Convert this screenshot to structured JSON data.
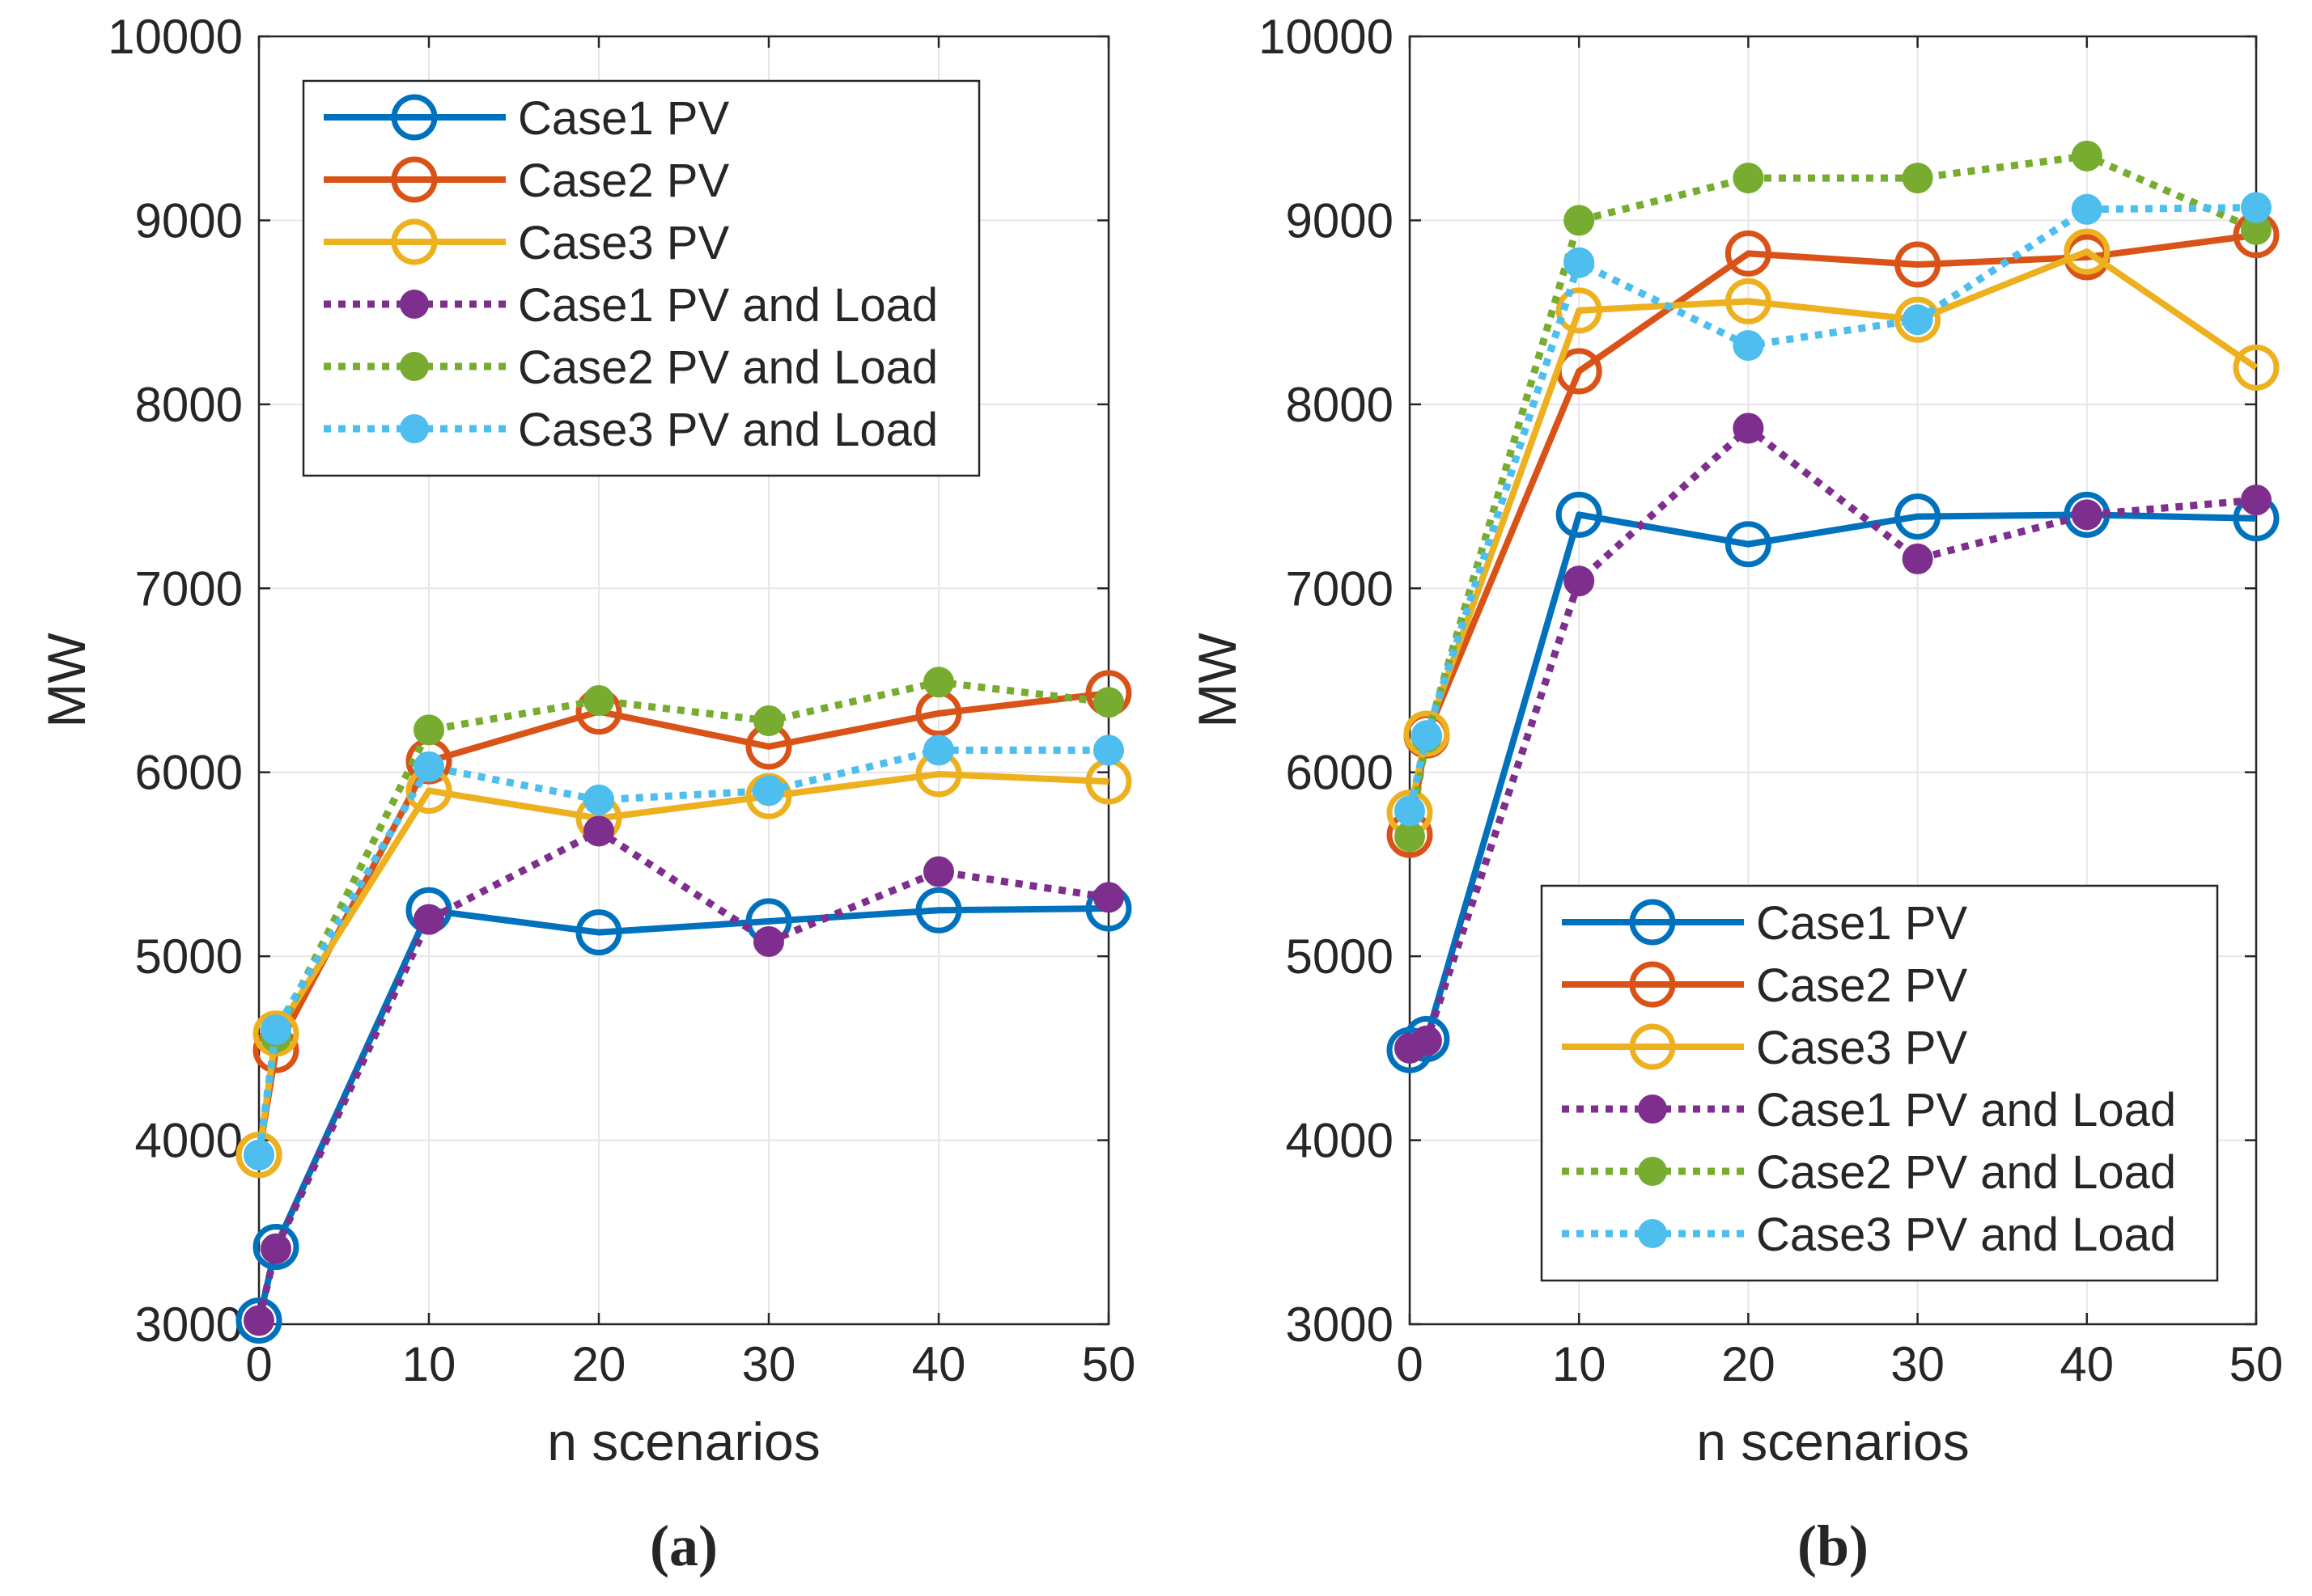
{
  "colors": {
    "case1": "#0072BD",
    "case2": "#D95319",
    "case3": "#EDB120",
    "case1_load": "#7E2F8E",
    "case2_load": "#77AC30",
    "case3_load": "#4DBEEE",
    "grid": "#e6e6e6",
    "axis": "#262626"
  },
  "chart_data": [
    {
      "type": "line",
      "panel_label": "(a)",
      "xlabel": "n scenarios",
      "ylabel": "MW",
      "xlim": [
        0,
        50
      ],
      "ylim": [
        3000,
        10000
      ],
      "xticks": [
        "0",
        "10",
        "20",
        "30",
        "40",
        "50"
      ],
      "yticks": [
        "3000",
        "4000",
        "5000",
        "6000",
        "7000",
        "8000",
        "9000",
        "10000"
      ],
      "grid": true,
      "legend_position": "top-left",
      "x": [
        0,
        1,
        10,
        20,
        30,
        40,
        50
      ],
      "series": [
        {
          "name": "Case1 PV",
          "style": "solid",
          "marker": "open-circle",
          "values": [
            3020,
            3420,
            5250,
            5130,
            5190,
            5250,
            5260
          ]
        },
        {
          "name": "Case2 PV",
          "style": "solid",
          "marker": "open-circle",
          "values": [
            3920,
            4490,
            6060,
            6330,
            6140,
            6320,
            6430
          ]
        },
        {
          "name": "Case3 PV",
          "style": "solid",
          "marker": "open-circle",
          "values": [
            3920,
            4580,
            5900,
            5750,
            5870,
            5990,
            5950
          ]
        },
        {
          "name": "Case1 PV and Load",
          "style": "dotted",
          "marker": "filled-circle",
          "values": [
            3020,
            3410,
            5200,
            5680,
            5080,
            5460,
            5320
          ]
        },
        {
          "name": "Case2 PV and Load",
          "style": "dotted",
          "marker": "filled-circle",
          "values": [
            3920,
            4560,
            6230,
            6390,
            6280,
            6490,
            6380
          ]
        },
        {
          "name": "Case3 PV and Load",
          "style": "dotted",
          "marker": "filled-circle",
          "values": [
            3920,
            4600,
            6030,
            5850,
            5900,
            6120,
            6120
          ]
        }
      ]
    },
    {
      "type": "line",
      "panel_label": "(b)",
      "xlabel": "n scenarios",
      "ylabel": "MW",
      "xlim": [
        0,
        50
      ],
      "ylim": [
        3000,
        10000
      ],
      "xticks": [
        "0",
        "10",
        "20",
        "30",
        "40",
        "50"
      ],
      "yticks": [
        "3000",
        "4000",
        "5000",
        "6000",
        "7000",
        "8000",
        "9000",
        "10000"
      ],
      "grid": true,
      "legend_position": "bottom-right",
      "x": [
        0,
        1,
        10,
        20,
        30,
        40,
        50
      ],
      "series": [
        {
          "name": "Case1 PV",
          "style": "solid",
          "marker": "open-circle",
          "values": [
            4490,
            4550,
            7400,
            7240,
            7390,
            7400,
            7380
          ]
        },
        {
          "name": "Case2 PV",
          "style": "solid",
          "marker": "open-circle",
          "values": [
            5660,
            6200,
            8180,
            8820,
            8760,
            8800,
            8920
          ]
        },
        {
          "name": "Case3 PV",
          "style": "solid",
          "marker": "open-circle",
          "values": [
            5780,
            6210,
            8510,
            8560,
            8460,
            8830,
            8200
          ]
        },
        {
          "name": "Case1 PV and Load",
          "style": "dotted",
          "marker": "filled-circle",
          "values": [
            4500,
            4540,
            7040,
            7870,
            7160,
            7400,
            7480
          ]
        },
        {
          "name": "Case2 PV and Load",
          "style": "dotted",
          "marker": "filled-circle",
          "values": [
            5650,
            6190,
            9000,
            9230,
            9230,
            9350,
            8950
          ]
        },
        {
          "name": "Case3 PV and Load",
          "style": "dotted",
          "marker": "filled-circle",
          "values": [
            5790,
            6200,
            8770,
            8320,
            8460,
            9060,
            9070
          ]
        }
      ]
    }
  ]
}
